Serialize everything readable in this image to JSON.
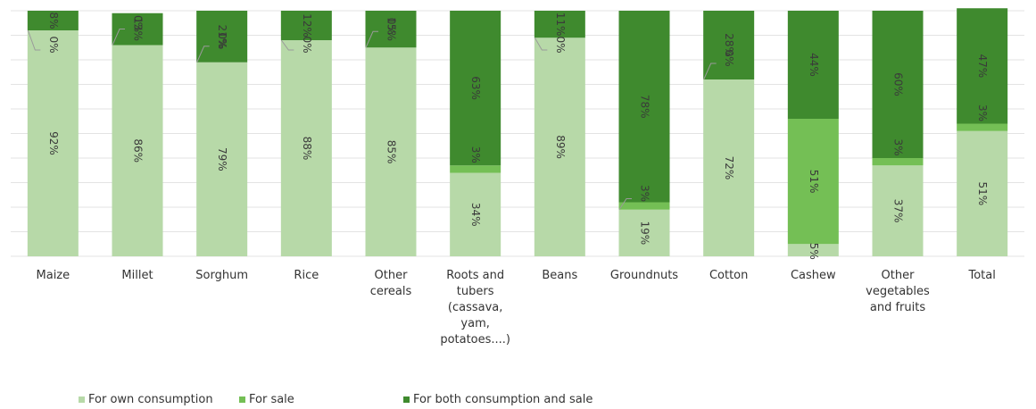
{
  "chart_data": {
    "type": "bar",
    "stacked": true,
    "percent": true,
    "categories": [
      [
        "Maize"
      ],
      [
        "Millet"
      ],
      [
        "Sorghum"
      ],
      [
        "Rice"
      ],
      [
        "Other",
        "cereals"
      ],
      [
        "Roots and",
        "tubers",
        "(cassava,",
        "yam,",
        "potatoes....)"
      ],
      [
        "Beans"
      ],
      [
        "Groundnuts"
      ],
      [
        "Cotton"
      ],
      [
        "Cashew"
      ],
      [
        "Other",
        "vegetables",
        "and fruits"
      ],
      [
        "Total"
      ]
    ],
    "series": [
      {
        "name": "For own consumption",
        "color": "#b7d9a8",
        "values": [
          92,
          86,
          79,
          88,
          85,
          34,
          89,
          19,
          72,
          5,
          37,
          51
        ],
        "labels": [
          "92%",
          "86%",
          "79%",
          "88%",
          "85%",
          "34%",
          "89%",
          "19%",
          "72%",
          "5%",
          "37%",
          "51%"
        ]
      },
      {
        "name": "For sale",
        "color": "#74bf55",
        "values": [
          0,
          0,
          0,
          0,
          0,
          3,
          0,
          3,
          0,
          51,
          3,
          3
        ],
        "labels": [
          "0%",
          "0%",
          "0%",
          "0%",
          "0%",
          "3%",
          "0%",
          "3%",
          "0%",
          "51%",
          "3%",
          "3%"
        ]
      },
      {
        "name": "For both consumption and sale",
        "color": "#3f8a2e",
        "values": [
          8,
          13,
          21,
          12,
          15,
          63,
          11,
          78,
          28,
          44,
          60,
          47
        ],
        "labels": [
          "8%",
          "13%",
          "21%",
          "12%",
          "15%",
          "63%",
          "11%",
          "78%",
          "28%",
          "44%",
          "60%",
          "47%"
        ]
      }
    ],
    "ylim": [
      0,
      100
    ],
    "grid": true,
    "legend_position": "bottom-left"
  }
}
